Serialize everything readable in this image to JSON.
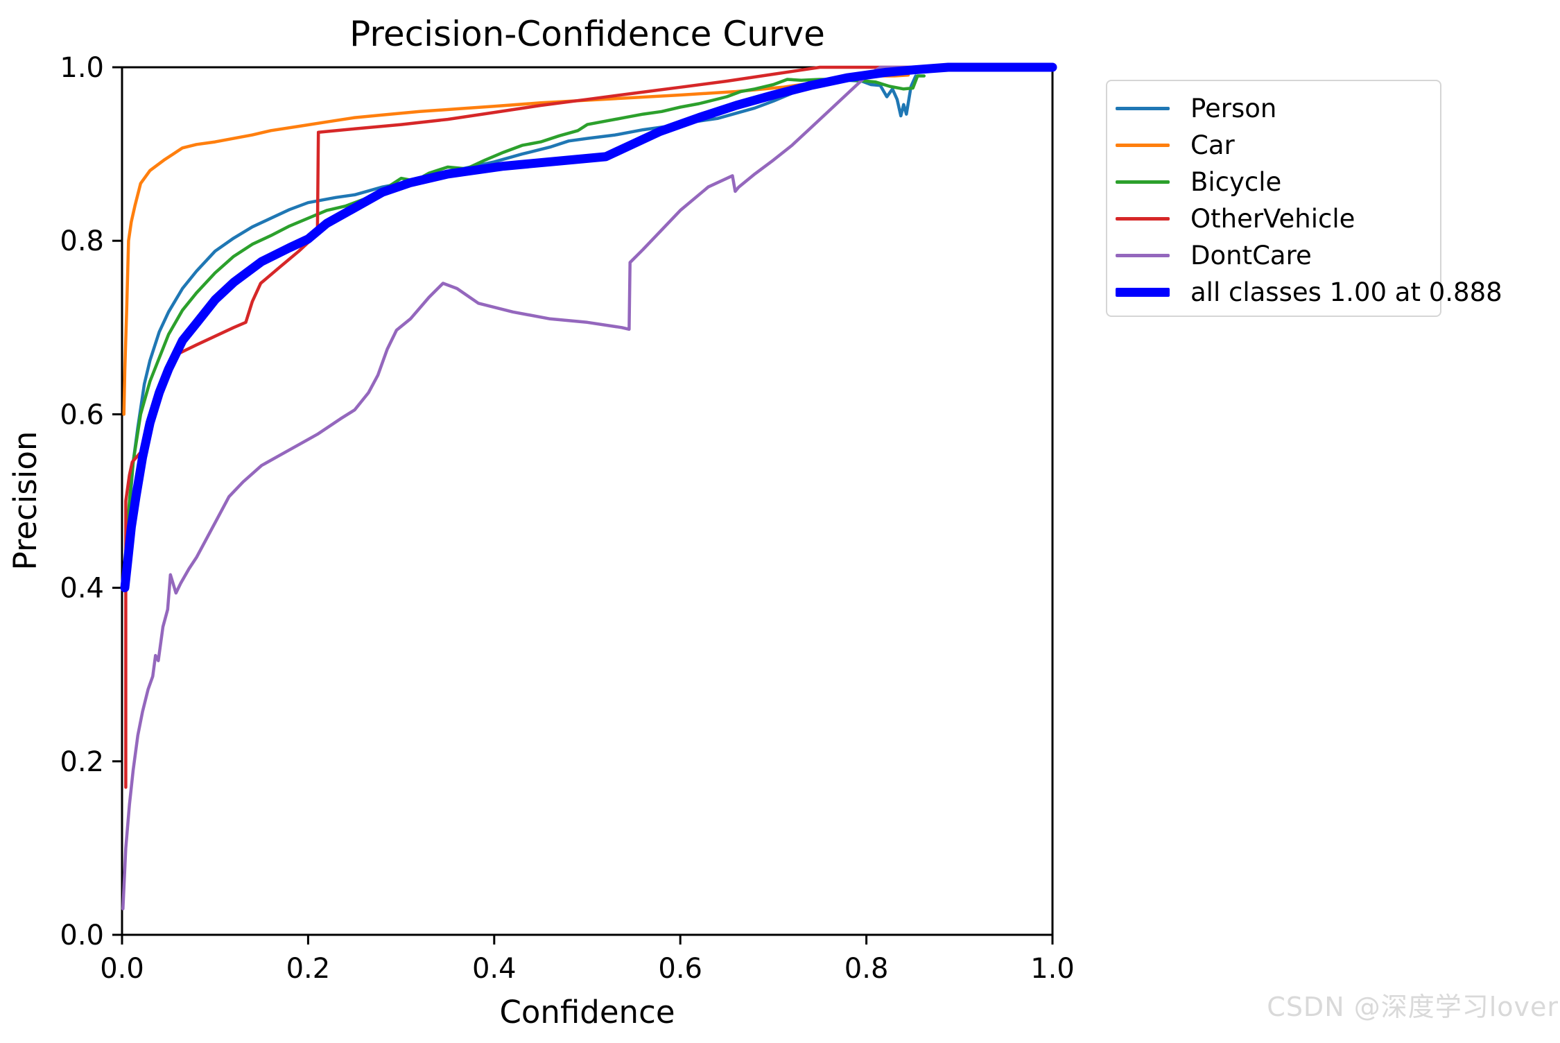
{
  "watermark": {
    "text": "CSDN @深度学习lover",
    "color": "#d9d9d9"
  },
  "chart_data": {
    "type": "line",
    "title": "Precision-Confidence Curve",
    "xlabel": "Confidence",
    "ylabel": "Precision",
    "xlim": [
      0.0,
      1.0
    ],
    "ylim": [
      0.0,
      1.0
    ],
    "xticks": [
      0.0,
      0.2,
      0.4,
      0.6,
      0.8,
      1.0
    ],
    "yticks": [
      0.0,
      0.2,
      0.4,
      0.6,
      0.8,
      1.0
    ],
    "xtick_labels": [
      "0.0",
      "0.2",
      "0.4",
      "0.6",
      "0.8",
      "1.0"
    ],
    "ytick_labels": [
      "0.0",
      "0.2",
      "0.4",
      "0.6",
      "0.8",
      "1.0"
    ],
    "grid": false,
    "legend_position": "outside-upper-right",
    "axis_color": "#000000",
    "series": [
      {
        "name": "Person",
        "color": "#1f77b4",
        "line_width": 4.5,
        "points": [
          [
            0.004,
            0.43
          ],
          [
            0.006,
            0.46
          ],
          [
            0.008,
            0.49
          ],
          [
            0.012,
            0.545
          ],
          [
            0.017,
            0.585
          ],
          [
            0.024,
            0.635
          ],
          [
            0.03,
            0.662
          ],
          [
            0.04,
            0.695
          ],
          [
            0.05,
            0.718
          ],
          [
            0.065,
            0.745
          ],
          [
            0.08,
            0.765
          ],
          [
            0.1,
            0.788
          ],
          [
            0.12,
            0.803
          ],
          [
            0.14,
            0.816
          ],
          [
            0.16,
            0.826
          ],
          [
            0.18,
            0.836
          ],
          [
            0.2,
            0.844
          ],
          [
            0.23,
            0.85
          ],
          [
            0.25,
            0.853
          ],
          [
            0.28,
            0.862
          ],
          [
            0.31,
            0.868
          ],
          [
            0.34,
            0.877
          ],
          [
            0.37,
            0.884
          ],
          [
            0.4,
            0.891
          ],
          [
            0.43,
            0.9
          ],
          [
            0.46,
            0.908
          ],
          [
            0.48,
            0.915
          ],
          [
            0.5,
            0.918
          ],
          [
            0.53,
            0.922
          ],
          [
            0.56,
            0.928
          ],
          [
            0.58,
            0.931
          ],
          [
            0.6,
            0.934
          ],
          [
            0.62,
            0.938
          ],
          [
            0.64,
            0.941
          ],
          [
            0.66,
            0.947
          ],
          [
            0.68,
            0.953
          ],
          [
            0.7,
            0.961
          ],
          [
            0.72,
            0.97
          ],
          [
            0.74,
            0.976
          ],
          [
            0.76,
            0.982
          ],
          [
            0.78,
            0.985
          ],
          [
            0.795,
            0.984
          ],
          [
            0.805,
            0.98
          ],
          [
            0.815,
            0.979
          ],
          [
            0.822,
            0.966
          ],
          [
            0.828,
            0.975
          ],
          [
            0.833,
            0.963
          ],
          [
            0.837,
            0.944
          ],
          [
            0.84,
            0.957
          ],
          [
            0.843,
            0.946
          ],
          [
            0.848,
            0.978
          ],
          [
            0.853,
            0.99
          ]
        ]
      },
      {
        "name": "Car",
        "color": "#ff7f0e",
        "line_width": 4.5,
        "points": [
          [
            0.002,
            0.6
          ],
          [
            0.003,
            0.65
          ],
          [
            0.005,
            0.72
          ],
          [
            0.007,
            0.8
          ],
          [
            0.01,
            0.822
          ],
          [
            0.014,
            0.841
          ],
          [
            0.02,
            0.866
          ],
          [
            0.03,
            0.881
          ],
          [
            0.045,
            0.893
          ],
          [
            0.055,
            0.9
          ],
          [
            0.065,
            0.907
          ],
          [
            0.08,
            0.911
          ],
          [
            0.1,
            0.914
          ],
          [
            0.12,
            0.918
          ],
          [
            0.14,
            0.922
          ],
          [
            0.16,
            0.927
          ],
          [
            0.19,
            0.932
          ],
          [
            0.22,
            0.937
          ],
          [
            0.25,
            0.942
          ],
          [
            0.28,
            0.945
          ],
          [
            0.32,
            0.949
          ],
          [
            0.36,
            0.952
          ],
          [
            0.4,
            0.955
          ],
          [
            0.45,
            0.959
          ],
          [
            0.5,
            0.962
          ],
          [
            0.55,
            0.965
          ],
          [
            0.6,
            0.968
          ],
          [
            0.63,
            0.97
          ],
          [
            0.66,
            0.972
          ],
          [
            0.69,
            0.975
          ],
          [
            0.71,
            0.977
          ],
          [
            0.73,
            0.98
          ],
          [
            0.75,
            0.983
          ],
          [
            0.77,
            0.986
          ],
          [
            0.79,
            0.988
          ],
          [
            0.81,
            0.99
          ],
          [
            0.83,
            0.99
          ],
          [
            0.845,
            0.991
          ]
        ]
      },
      {
        "name": "Bicycle",
        "color": "#2ca02c",
        "line_width": 4.5,
        "points": [
          [
            0.004,
            0.44
          ],
          [
            0.008,
            0.5
          ],
          [
            0.012,
            0.545
          ],
          [
            0.02,
            0.6
          ],
          [
            0.03,
            0.638
          ],
          [
            0.04,
            0.665
          ],
          [
            0.05,
            0.692
          ],
          [
            0.065,
            0.72
          ],
          [
            0.08,
            0.74
          ],
          [
            0.1,
            0.763
          ],
          [
            0.12,
            0.782
          ],
          [
            0.14,
            0.796
          ],
          [
            0.16,
            0.806
          ],
          [
            0.18,
            0.817
          ],
          [
            0.2,
            0.826
          ],
          [
            0.22,
            0.835
          ],
          [
            0.24,
            0.84
          ],
          [
            0.26,
            0.848
          ],
          [
            0.28,
            0.858
          ],
          [
            0.3,
            0.872
          ],
          [
            0.315,
            0.869
          ],
          [
            0.33,
            0.878
          ],
          [
            0.35,
            0.885
          ],
          [
            0.37,
            0.883
          ],
          [
            0.39,
            0.893
          ],
          [
            0.41,
            0.902
          ],
          [
            0.43,
            0.91
          ],
          [
            0.45,
            0.914
          ],
          [
            0.47,
            0.921
          ],
          [
            0.49,
            0.927
          ],
          [
            0.5,
            0.934
          ],
          [
            0.52,
            0.938
          ],
          [
            0.54,
            0.942
          ],
          [
            0.56,
            0.946
          ],
          [
            0.58,
            0.949
          ],
          [
            0.6,
            0.954
          ],
          [
            0.62,
            0.958
          ],
          [
            0.635,
            0.962
          ],
          [
            0.65,
            0.966
          ],
          [
            0.665,
            0.972
          ],
          [
            0.68,
            0.975
          ],
          [
            0.7,
            0.98
          ],
          [
            0.715,
            0.986
          ],
          [
            0.73,
            0.985
          ],
          [
            0.75,
            0.986
          ],
          [
            0.77,
            0.986
          ],
          [
            0.79,
            0.985
          ],
          [
            0.81,
            0.983
          ],
          [
            0.825,
            0.978
          ],
          [
            0.84,
            0.975
          ],
          [
            0.85,
            0.976
          ],
          [
            0.855,
            0.99
          ],
          [
            0.862,
            0.99
          ]
        ]
      },
      {
        "name": "OtherVehicle",
        "color": "#d62728",
        "line_width": 4.5,
        "points": [
          [
            0.004,
            0.17
          ],
          [
            0.004,
            0.5
          ],
          [
            0.008,
            0.53
          ],
          [
            0.011,
            0.545
          ],
          [
            0.02,
            0.556
          ],
          [
            0.03,
            0.585
          ],
          [
            0.04,
            0.617
          ],
          [
            0.055,
            0.667
          ],
          [
            0.08,
            0.68
          ],
          [
            0.1,
            0.69
          ],
          [
            0.12,
            0.7
          ],
          [
            0.133,
            0.706
          ],
          [
            0.14,
            0.73
          ],
          [
            0.149,
            0.751
          ],
          [
            0.17,
            0.77
          ],
          [
            0.19,
            0.788
          ],
          [
            0.21,
            0.808
          ],
          [
            0.211,
            0.925
          ],
          [
            0.25,
            0.929
          ],
          [
            0.3,
            0.934
          ],
          [
            0.35,
            0.94
          ],
          [
            0.4,
            0.948
          ],
          [
            0.45,
            0.956
          ],
          [
            0.5,
            0.963
          ],
          [
            0.55,
            0.97
          ],
          [
            0.6,
            0.977
          ],
          [
            0.65,
            0.984
          ],
          [
            0.7,
            0.992
          ],
          [
            0.75,
            1.0
          ],
          [
            0.888,
            1.0
          ]
        ]
      },
      {
        "name": "DontCare",
        "color": "#9467bd",
        "line_width": 4.5,
        "points": [
          [
            0.001,
            0.03
          ],
          [
            0.004,
            0.1
          ],
          [
            0.008,
            0.15
          ],
          [
            0.012,
            0.19
          ],
          [
            0.017,
            0.23
          ],
          [
            0.022,
            0.257
          ],
          [
            0.028,
            0.283
          ],
          [
            0.033,
            0.298
          ],
          [
            0.036,
            0.322
          ],
          [
            0.039,
            0.316
          ],
          [
            0.044,
            0.355
          ],
          [
            0.049,
            0.375
          ],
          [
            0.052,
            0.415
          ],
          [
            0.058,
            0.394
          ],
          [
            0.063,
            0.405
          ],
          [
            0.072,
            0.422
          ],
          [
            0.08,
            0.435
          ],
          [
            0.09,
            0.455
          ],
          [
            0.1,
            0.475
          ],
          [
            0.115,
            0.505
          ],
          [
            0.13,
            0.522
          ],
          [
            0.15,
            0.541
          ],
          [
            0.17,
            0.553
          ],
          [
            0.19,
            0.565
          ],
          [
            0.21,
            0.577
          ],
          [
            0.235,
            0.595
          ],
          [
            0.25,
            0.605
          ],
          [
            0.265,
            0.625
          ],
          [
            0.275,
            0.645
          ],
          [
            0.285,
            0.675
          ],
          [
            0.295,
            0.697
          ],
          [
            0.31,
            0.71
          ],
          [
            0.33,
            0.735
          ],
          [
            0.345,
            0.751
          ],
          [
            0.36,
            0.745
          ],
          [
            0.383,
            0.728
          ],
          [
            0.42,
            0.718
          ],
          [
            0.46,
            0.71
          ],
          [
            0.5,
            0.706
          ],
          [
            0.537,
            0.7
          ],
          [
            0.545,
            0.698
          ],
          [
            0.546,
            0.775
          ],
          [
            0.56,
            0.79
          ],
          [
            0.6,
            0.835
          ],
          [
            0.63,
            0.862
          ],
          [
            0.656,
            0.875
          ],
          [
            0.659,
            0.857
          ],
          [
            0.663,
            0.862
          ],
          [
            0.68,
            0.877
          ],
          [
            0.7,
            0.893
          ],
          [
            0.72,
            0.91
          ],
          [
            0.74,
            0.93
          ],
          [
            0.76,
            0.95
          ],
          [
            0.78,
            0.97
          ],
          [
            0.8,
            0.99
          ],
          [
            0.815,
            1.0
          ],
          [
            1.0,
            1.0
          ]
        ]
      },
      {
        "name": "all classes 1.00 at 0.888",
        "color": "#0000ff",
        "line_width": 13,
        "points": [
          [
            0.003,
            0.4
          ],
          [
            0.006,
            0.43
          ],
          [
            0.01,
            0.47
          ],
          [
            0.015,
            0.505
          ],
          [
            0.022,
            0.55
          ],
          [
            0.03,
            0.59
          ],
          [
            0.04,
            0.625
          ],
          [
            0.05,
            0.652
          ],
          [
            0.065,
            0.685
          ],
          [
            0.08,
            0.705
          ],
          [
            0.1,
            0.732
          ],
          [
            0.12,
            0.752
          ],
          [
            0.15,
            0.776
          ],
          [
            0.18,
            0.792
          ],
          [
            0.2,
            0.802
          ],
          [
            0.22,
            0.82
          ],
          [
            0.25,
            0.838
          ],
          [
            0.28,
            0.856
          ],
          [
            0.31,
            0.867
          ],
          [
            0.35,
            0.877
          ],
          [
            0.41,
            0.886
          ],
          [
            0.47,
            0.892
          ],
          [
            0.52,
            0.897
          ],
          [
            0.55,
            0.912
          ],
          [
            0.578,
            0.926
          ],
          [
            0.62,
            0.942
          ],
          [
            0.66,
            0.956
          ],
          [
            0.7,
            0.968
          ],
          [
            0.74,
            0.979
          ],
          [
            0.78,
            0.988
          ],
          [
            0.82,
            0.994
          ],
          [
            0.85,
            0.997
          ],
          [
            0.888,
            1.0
          ],
          [
            1.0,
            1.0
          ]
        ]
      }
    ]
  }
}
